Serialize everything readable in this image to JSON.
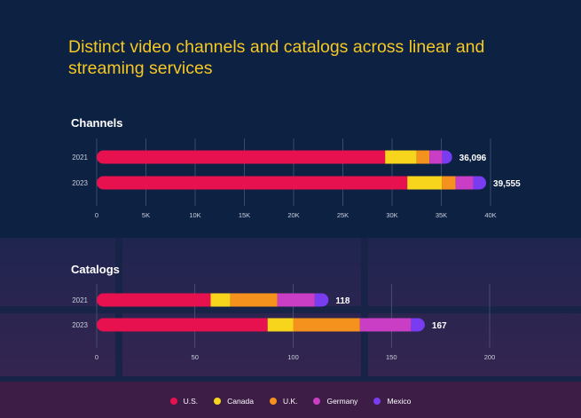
{
  "title": "Distinct video channels and catalogs across linear and streaming services",
  "colors": {
    "us": "#e8114f",
    "canada": "#f7d51d",
    "uk": "#f5921d",
    "germany": "#c93ec4",
    "mexico": "#7a3cf0",
    "title": "#f5c823",
    "background": "#0d2143"
  },
  "legend": [
    {
      "label": "U.S.",
      "color": "#e8114f"
    },
    {
      "label": "Canada",
      "color": "#f7d51d"
    },
    {
      "label": "U.K.",
      "color": "#f5921d"
    },
    {
      "label": "Germany",
      "color": "#c93ec4"
    },
    {
      "label": "Mexico",
      "color": "#7a3cf0"
    }
  ],
  "chart_data": [
    {
      "type": "bar",
      "orientation": "horizontal",
      "stacked": true,
      "title": "Channels",
      "categories": [
        "2021",
        "2023"
      ],
      "series": [
        {
          "name": "U.S.",
          "values": [
            29300,
            31550
          ]
        },
        {
          "name": "Canada",
          "values": [
            3200,
            3500
          ]
        },
        {
          "name": "U.K.",
          "values": [
            1300,
            1400
          ]
        },
        {
          "name": "Germany",
          "values": [
            1300,
            1800
          ]
        },
        {
          "name": "Mexico",
          "values": [
            996,
            1305
          ]
        }
      ],
      "totals": [
        "36,096",
        "39,555"
      ],
      "xlim": [
        0,
        40000
      ],
      "xticks": [
        0,
        5000,
        10000,
        15000,
        20000,
        25000,
        30000,
        35000,
        40000
      ],
      "xtick_labels": [
        "0",
        "5K",
        "10K",
        "15K",
        "20K",
        "25K",
        "30K",
        "35K",
        "40K"
      ],
      "grid": true
    },
    {
      "type": "bar",
      "orientation": "horizontal",
      "stacked": true,
      "title": "Catalogs",
      "categories": [
        "2021",
        "2023"
      ],
      "series": [
        {
          "name": "U.S.",
          "values": [
            58,
            87
          ]
        },
        {
          "name": "Canada",
          "values": [
            10,
            13
          ]
        },
        {
          "name": "U.K.",
          "values": [
            24,
            34
          ]
        },
        {
          "name": "Germany",
          "values": [
            19,
            26
          ]
        },
        {
          "name": "Mexico",
          "values": [
            7,
            7
          ]
        }
      ],
      "totals": [
        "118",
        "167"
      ],
      "xlim": [
        0,
        200
      ],
      "xticks": [
        0,
        50,
        100,
        150,
        200
      ],
      "xtick_labels": [
        "0",
        "50",
        "100",
        "150",
        "200"
      ],
      "grid": true
    }
  ]
}
